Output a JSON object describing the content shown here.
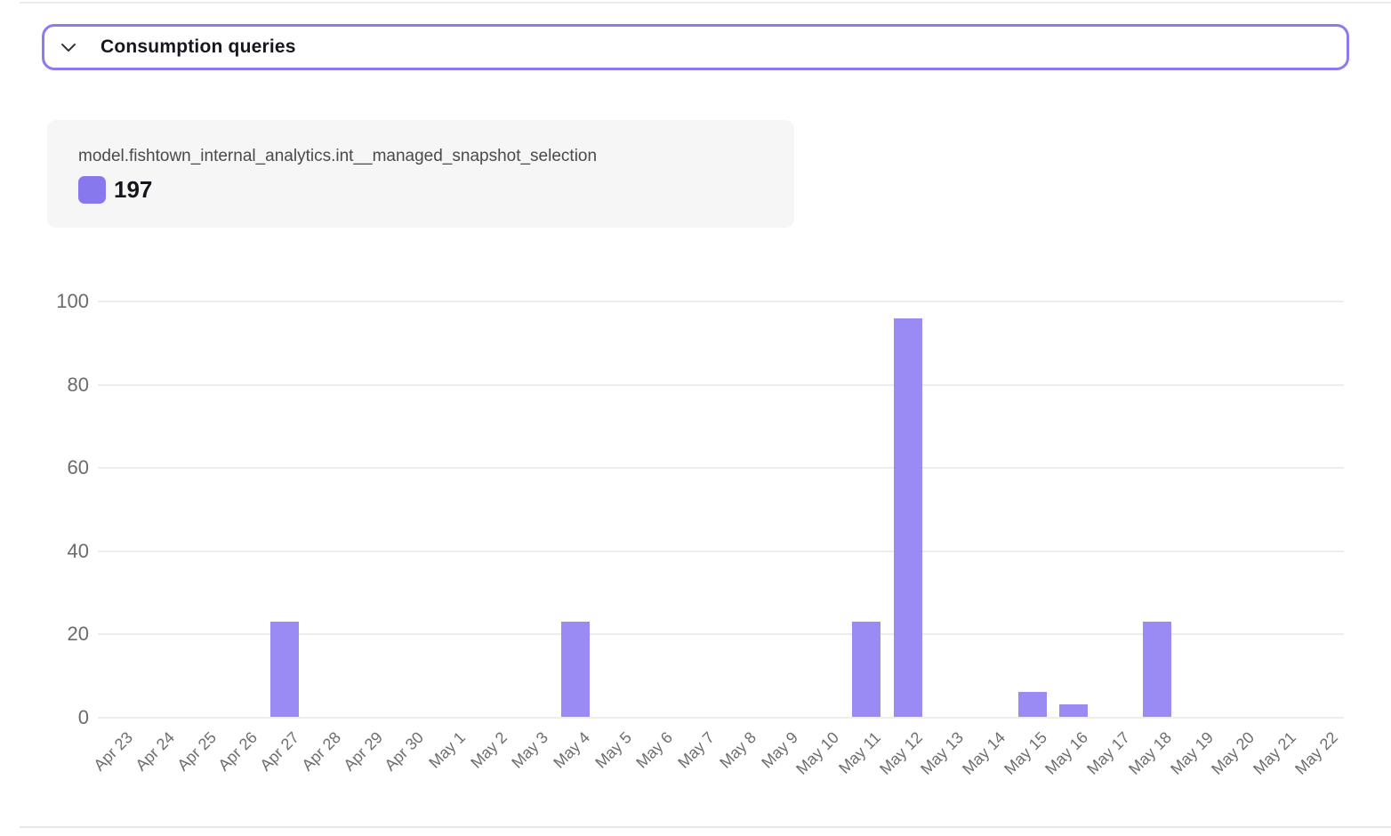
{
  "header": {
    "title": "Consumption queries",
    "border_color": "#8b7af0"
  },
  "legend_card": {
    "series_name": "model.fishtown_internal_analytics.int__managed_snapshot_selection",
    "total": "197",
    "marker_color": "#8778ee"
  },
  "chart_data": {
    "type": "bar",
    "title": "",
    "xlabel": "",
    "ylabel": "",
    "series_name": "model.fishtown_internal_analytics.int__managed_snapshot_selection",
    "categories": [
      "Apr 23",
      "Apr 24",
      "Apr 25",
      "Apr 26",
      "Apr 27",
      "Apr 28",
      "Apr 29",
      "Apr 30",
      "May 1",
      "May 2",
      "May 3",
      "May 4",
      "May 5",
      "May 6",
      "May 7",
      "May 8",
      "May 9",
      "May 10",
      "May 11",
      "May 12",
      "May 13",
      "May 14",
      "May 15",
      "May 16",
      "May 17",
      "May 18",
      "May 19",
      "May 20",
      "May 21",
      "May 22"
    ],
    "values": [
      0,
      0,
      0,
      0,
      23,
      0,
      0,
      0,
      0,
      0,
      0,
      23,
      0,
      0,
      0,
      0,
      0,
      0,
      23,
      96,
      0,
      0,
      6,
      3,
      0,
      23,
      0,
      0,
      0,
      0
    ],
    "total": 197,
    "ylim": [
      0,
      100
    ],
    "yticks": [
      0,
      20,
      40,
      60,
      80,
      100
    ],
    "grid": true,
    "legend_position": "top-left",
    "x_label_rotation": -45,
    "bar_color": "#9a8af4",
    "gridline_color": "#ededed",
    "axis_text_color": "#6b6b6b"
  }
}
